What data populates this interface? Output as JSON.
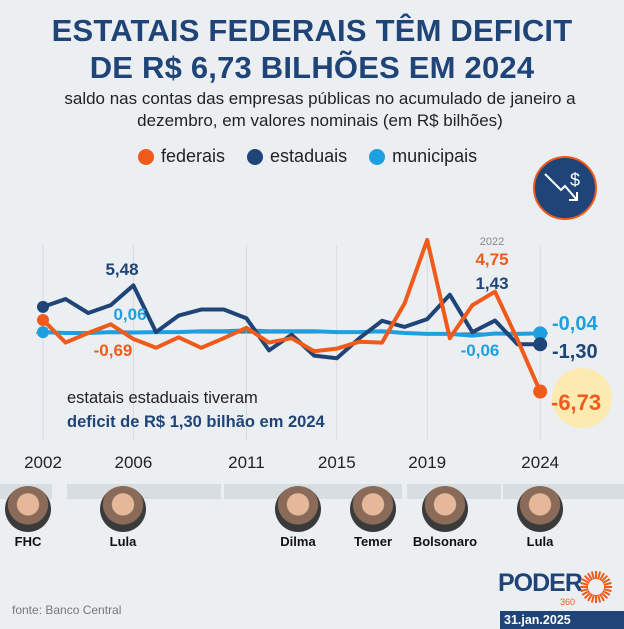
{
  "title_line1": "ESTATAIS FEDERAIS TÊM DEFICIT",
  "title_line2": "DE R$ 6,73 BILHÕES EM 2024",
  "subtitle": "saldo nas contas das empresas públicas no acumulado de janeiro a dezembro, em valores nominais (em R$ bilhões)",
  "icon": "dollar-trend-down-icon",
  "note_line1": "estatais estaduais tiveram",
  "note_line2": "deficit de R$ 1,30 bilhão em 2024",
  "presidents": [
    "FHC",
    "Lula",
    "Dilma",
    "Temer",
    "Bolsonaro",
    "Lula"
  ],
  "source": "fonte: Banco Central",
  "logo": "PODER",
  "logo_sub": "360",
  "date": "31.jan.2025",
  "colors": {
    "federais": "#f05a1a",
    "estaduais": "#1f4478",
    "municipais": "#1ea0e0",
    "background": "#eceff2"
  },
  "chart_data": {
    "type": "line",
    "x": [
      2002,
      2003,
      2004,
      2005,
      2006,
      2007,
      2008,
      2009,
      2010,
      2011,
      2012,
      2013,
      2014,
      2015,
      2016,
      2017,
      2018,
      2019,
      2020,
      2021,
      2022,
      2023,
      2024
    ],
    "x_ticks": [
      "2002",
      "2006",
      "2011",
      "2015",
      "2019",
      "2024"
    ],
    "grid": "vertical lines at tick years",
    "legend_position": "top",
    "series": [
      {
        "name": "federais",
        "color": "#f05a1a",
        "values": [
          1.5,
          -1.1,
          0.0,
          1.0,
          -0.69,
          -1.7,
          -0.5,
          -1.7,
          -0.6,
          0.6,
          -1.1,
          -0.6,
          -2.1,
          -1.8,
          -1.0,
          -1.1,
          3.4,
          10.7,
          -0.6,
          3.2,
          4.75,
          -0.8,
          -6.73
        ]
      },
      {
        "name": "estaduais",
        "color": "#1f4478",
        "values": [
          3.0,
          3.9,
          2.3,
          3.2,
          5.48,
          0.1,
          2.0,
          2.7,
          2.7,
          1.7,
          -2.0,
          -0.2,
          -2.6,
          -2.9,
          -0.6,
          1.4,
          0.7,
          1.6,
          4.4,
          0.1,
          1.43,
          -1.3,
          -1.3
        ]
      },
      {
        "name": "municipais",
        "color": "#1ea0e0",
        "values": [
          0.1,
          0.0,
          0.0,
          0.1,
          0.06,
          0.1,
          0.1,
          0.2,
          0.2,
          0.3,
          0.2,
          0.2,
          0.2,
          0.1,
          0.1,
          0.2,
          0.0,
          -0.1,
          -0.1,
          -0.3,
          -0.06,
          -0.1,
          -0.04
        ]
      }
    ],
    "annotations": [
      {
        "series": "estaduais",
        "x": 2006,
        "label": "5,48"
      },
      {
        "series": "municipais",
        "x": 2006,
        "label": "0,06"
      },
      {
        "series": "federais",
        "x": 2006,
        "label": "-0,69"
      },
      {
        "series": "federais",
        "x": 2022,
        "label": "4,75",
        "year_label": "2022"
      },
      {
        "series": "estaduais",
        "x": 2022,
        "label": "1,43"
      },
      {
        "series": "municipais",
        "x": 2022,
        "label": "-0,06"
      },
      {
        "series": "municipais",
        "x": 2024,
        "label": "-0,04"
      },
      {
        "series": "estaduais",
        "x": 2024,
        "label": "-1,30"
      },
      {
        "series": "federais",
        "x": 2024,
        "label": "-6,73"
      }
    ]
  }
}
